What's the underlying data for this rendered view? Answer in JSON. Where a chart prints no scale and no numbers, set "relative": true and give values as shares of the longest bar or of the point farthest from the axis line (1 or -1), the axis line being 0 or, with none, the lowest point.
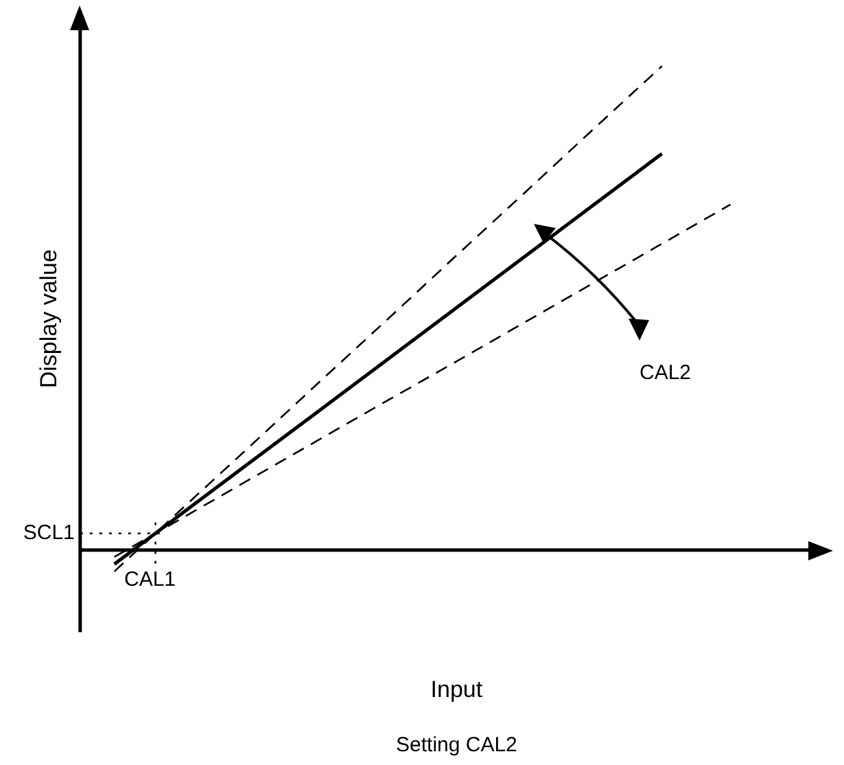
{
  "chart_data": {
    "type": "line",
    "relative": true,
    "xlabel": "Input",
    "ylabel": "Display value",
    "categories": [
      null,
      null,
      null,
      null,
      null,
      null,
      null,
      null,
      null,
      null,
      null
    ],
    "series": [
      {
        "color": "#000000",
        "line_style": "solid",
        "values": [
          -0.029,
          0.077,
          0.183,
          0.289,
          0.395,
          0.501,
          0.607,
          0.713,
          0.819,
          null,
          null
        ]
      },
      {
        "color": "#000000",
        "line_style": "dashed",
        "values": [
          -0.044,
          0.087,
          0.217,
          0.348,
          0.478,
          0.609,
          0.739,
          0.87,
          1,
          null,
          null
        ]
      },
      {
        "color": "#000000",
        "line_style": "dashed",
        "values": [
          -0.014,
          0.067,
          0.148,
          0.229,
          0.31,
          0.39,
          0.471,
          0.552,
          0.633,
          0.714,
          null
        ]
      }
    ],
    "annotations": [
      "SCL1",
      "CAL1",
      "CAL2",
      "Setting CAL2"
    ],
    "legend": false,
    "grid": false,
    "marker": "none"
  }
}
